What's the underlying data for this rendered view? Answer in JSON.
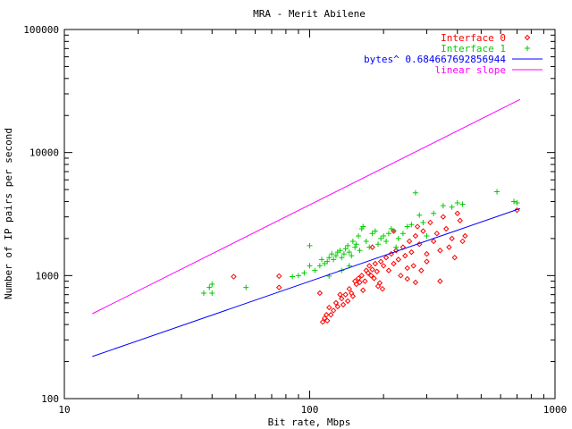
{
  "chart_data": {
    "type": "scatter",
    "title": "MRA - Merit Abilene",
    "xlabel": "Bit rate, Mbps",
    "ylabel": "Number of IP pairs per second",
    "xscale": "log",
    "yscale": "log",
    "xlim": [
      10,
      1000
    ],
    "ylim": [
      100,
      100000
    ],
    "grid": false,
    "legend_position": "top-right",
    "x_ticks": [
      {
        "value": 10,
        "label": "10"
      },
      {
        "value": 100,
        "label": "100"
      },
      {
        "value": 1000,
        "label": "1000"
      }
    ],
    "y_ticks": [
      {
        "value": 100,
        "label": "100"
      },
      {
        "value": 1000,
        "label": "1000"
      },
      {
        "value": 10000,
        "label": "10000"
      },
      {
        "value": 100000,
        "label": "100000"
      }
    ],
    "series": [
      {
        "name": "Interface 0",
        "kind": "points",
        "marker": "diamond",
        "color": "#ff0000",
        "points": [
          [
            49,
            980
          ],
          [
            75,
            800
          ],
          [
            75,
            990
          ],
          [
            110,
            720
          ],
          [
            113,
            420
          ],
          [
            115,
            450
          ],
          [
            117,
            480
          ],
          [
            118,
            430
          ],
          [
            120,
            550
          ],
          [
            122,
            480
          ],
          [
            125,
            520
          ],
          [
            128,
            600
          ],
          [
            130,
            560
          ],
          [
            133,
            700
          ],
          [
            135,
            650
          ],
          [
            137,
            580
          ],
          [
            140,
            700
          ],
          [
            143,
            620
          ],
          [
            145,
            780
          ],
          [
            148,
            720
          ],
          [
            150,
            680
          ],
          [
            153,
            900
          ],
          [
            155,
            850
          ],
          [
            158,
            950
          ],
          [
            160,
            880
          ],
          [
            163,
            1000
          ],
          [
            165,
            760
          ],
          [
            168,
            900
          ],
          [
            170,
            1100
          ],
          [
            173,
            1050
          ],
          [
            175,
            1200
          ],
          [
            178,
            1000
          ],
          [
            180,
            1120
          ],
          [
            183,
            950
          ],
          [
            185,
            1250
          ],
          [
            188,
            1080
          ],
          [
            190,
            820
          ],
          [
            193,
            870
          ],
          [
            195,
            1300
          ],
          [
            198,
            780
          ],
          [
            200,
            1200
          ],
          [
            205,
            1400
          ],
          [
            210,
            1100
          ],
          [
            215,
            1500
          ],
          [
            220,
            1250
          ],
          [
            225,
            1600
          ],
          [
            230,
            1350
          ],
          [
            235,
            1000
          ],
          [
            240,
            1700
          ],
          [
            245,
            1450
          ],
          [
            250,
            1150
          ],
          [
            255,
            1900
          ],
          [
            260,
            1550
          ],
          [
            265,
            1200
          ],
          [
            270,
            2100
          ],
          [
            275,
            2500
          ],
          [
            280,
            1800
          ],
          [
            285,
            1100
          ],
          [
            290,
            2300
          ],
          [
            300,
            1500
          ],
          [
            310,
            2700
          ],
          [
            320,
            1900
          ],
          [
            330,
            2200
          ],
          [
            340,
            1600
          ],
          [
            350,
            3000
          ],
          [
            360,
            2400
          ],
          [
            370,
            1700
          ],
          [
            380,
            2000
          ],
          [
            390,
            1400
          ],
          [
            400,
            3200
          ],
          [
            410,
            2800
          ],
          [
            420,
            1900
          ],
          [
            430,
            2100
          ],
          [
            220,
            2300
          ],
          [
            180,
            1700
          ],
          [
            300,
            1300
          ],
          [
            340,
            900
          ],
          [
            270,
            880
          ],
          [
            250,
            940
          ],
          [
            700,
            3400
          ]
        ]
      },
      {
        "name": "Interface 1",
        "kind": "points",
        "marker": "plus",
        "color": "#00cc00",
        "points": [
          [
            37,
            720
          ],
          [
            39,
            800
          ],
          [
            40,
            720
          ],
          [
            40,
            850
          ],
          [
            55,
            800
          ],
          [
            85,
            980
          ],
          [
            90,
            1000
          ],
          [
            95,
            1050
          ],
          [
            100,
            1750
          ],
          [
            100,
            1200
          ],
          [
            105,
            1100
          ],
          [
            110,
            1200
          ],
          [
            112,
            1350
          ],
          [
            115,
            1250
          ],
          [
            118,
            1300
          ],
          [
            120,
            1400
          ],
          [
            123,
            1500
          ],
          [
            125,
            1350
          ],
          [
            128,
            1450
          ],
          [
            130,
            1550
          ],
          [
            133,
            1600
          ],
          [
            135,
            1400
          ],
          [
            138,
            1500
          ],
          [
            140,
            1650
          ],
          [
            143,
            1750
          ],
          [
            145,
            1550
          ],
          [
            148,
            1450
          ],
          [
            150,
            1900
          ],
          [
            153,
            1700
          ],
          [
            155,
            1800
          ],
          [
            158,
            2100
          ],
          [
            160,
            1600
          ],
          [
            163,
            2400
          ],
          [
            165,
            2500
          ],
          [
            170,
            1900
          ],
          [
            175,
            1700
          ],
          [
            180,
            2200
          ],
          [
            185,
            2300
          ],
          [
            190,
            1800
          ],
          [
            195,
            2000
          ],
          [
            200,
            2100
          ],
          [
            205,
            1900
          ],
          [
            210,
            2200
          ],
          [
            215,
            2400
          ],
          [
            220,
            2300
          ],
          [
            225,
            1700
          ],
          [
            230,
            2000
          ],
          [
            240,
            2200
          ],
          [
            250,
            2500
          ],
          [
            260,
            2600
          ],
          [
            270,
            4700
          ],
          [
            280,
            3100
          ],
          [
            290,
            2700
          ],
          [
            300,
            2100
          ],
          [
            320,
            3200
          ],
          [
            350,
            3700
          ],
          [
            380,
            3600
          ],
          [
            400,
            3900
          ],
          [
            420,
            3800
          ],
          [
            580,
            4800
          ],
          [
            680,
            4000
          ],
          [
            700,
            3900
          ],
          [
            120,
            990
          ],
          [
            135,
            1100
          ],
          [
            145,
            1200
          ]
        ]
      },
      {
        "name": "bytes^ 0.684667692856944",
        "kind": "line",
        "color": "#0000ff",
        "points": [
          [
            13,
            220
          ],
          [
            720,
            3500
          ]
        ]
      },
      {
        "name": "linear slope",
        "kind": "line",
        "color": "#ff00ff",
        "points": [
          [
            13,
            490
          ],
          [
            720,
            27000
          ]
        ]
      }
    ]
  }
}
